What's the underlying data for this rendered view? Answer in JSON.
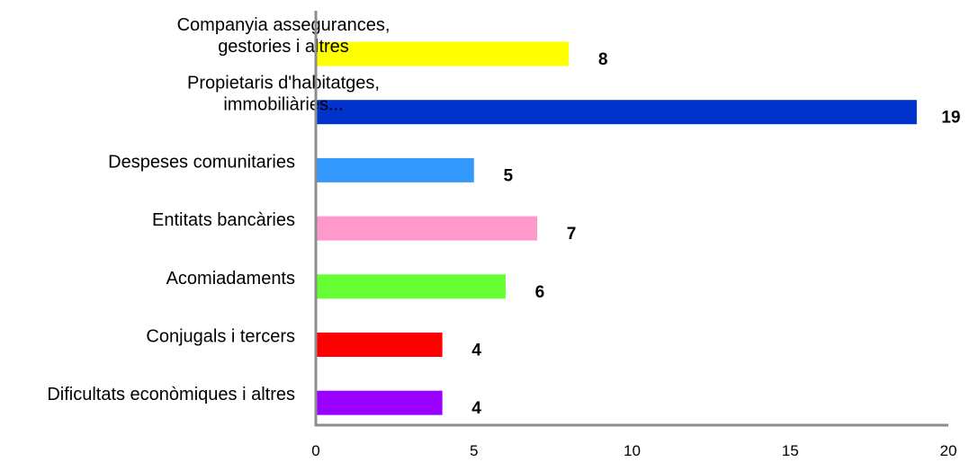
{
  "chart_data": {
    "type": "bar",
    "orientation": "horizontal",
    "title": "",
    "xlabel": "",
    "ylabel": "",
    "xlim": [
      0,
      20
    ],
    "x_ticks": [
      "0",
      "5",
      "10",
      "15",
      "20"
    ],
    "grid": false,
    "legend": "none",
    "data_labels": true,
    "categories": [
      [
        "Companyia assegurances,",
        "gestories i altres"
      ],
      [
        "Propietaris d'habitatges,",
        "immobiliàries..."
      ],
      [
        "Despeses comunitaries"
      ],
      [
        "Entitats bancàries"
      ],
      [
        "Acomiadaments"
      ],
      [
        "Conjugals i tercers"
      ],
      [
        "Dificultats econòmiques i altres"
      ]
    ],
    "values": [
      8,
      19,
      5,
      7,
      6,
      4,
      4
    ],
    "colors": [
      "#ffff00",
      "#0033cc",
      "#3399ff",
      "#ff99cc",
      "#66ff33",
      "#ff0000",
      "#9900ff"
    ],
    "axis_color": "#8c8c8c"
  }
}
